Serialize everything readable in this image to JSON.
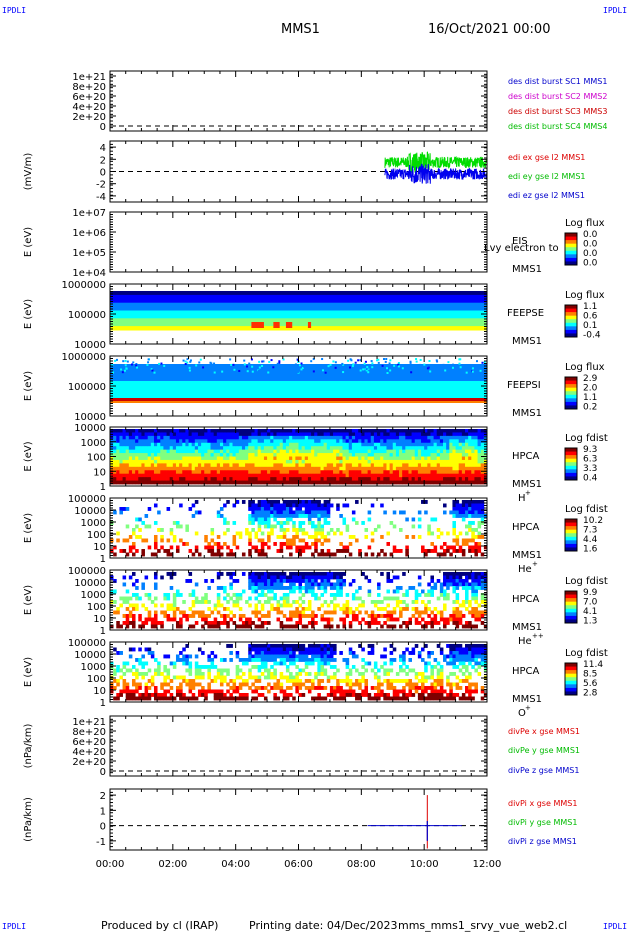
{
  "corner_labels": [
    "IPDLI",
    "IPDLI",
    "IPDLI",
    "IPDLI"
  ],
  "header": {
    "spacecraft": "MMS1",
    "date": "16/Oct/2021 00:00"
  },
  "footer": {
    "produced_by": "Produced by cl (IRAP)",
    "printing_date": "Printing date: 04/Dec/2023",
    "filename": "mms_mms1_srvy_vue_web2.cl"
  },
  "chart_data": {
    "type": "line",
    "x_tick_labels": [
      "00:00",
      "02:00",
      "04:00",
      "06:00",
      "08:00",
      "10:00",
      "12:00"
    ],
    "x_range_hours": [
      0,
      12
    ],
    "panels": [
      {
        "id": "des-dist",
        "type": "line",
        "ylabel": "",
        "ylim": [
          -1e+20,
          1.1e+21
        ],
        "y_tick_labels": [
          "1e+21",
          "8e+20",
          "6e+20",
          "4e+20",
          "2e+20",
          "0"
        ],
        "y_tick_values": [
          1e+21,
          8e+20,
          6e+20,
          4e+20,
          2e+20,
          0
        ],
        "zero_line": true,
        "legend": [
          {
            "text": "des dist burst SC1 MMS1",
            "color": "#0000cc"
          },
          {
            "text": "des dist burst SC2 MMS2",
            "color": "#cc00cc"
          },
          {
            "text": "des dist burst SC3 MMS3",
            "color": "#cc0000"
          },
          {
            "text": "des dist burst SC4 MMS4",
            "color": "#00bb00"
          }
        ]
      },
      {
        "id": "edi-e",
        "type": "line",
        "ylabel": "(mV/m)",
        "ylim": [
          -5,
          5
        ],
        "y_tick_labels": [
          "4",
          "2",
          "0",
          "-2",
          "-4"
        ],
        "y_tick_values": [
          4,
          2,
          0,
          -2,
          -4
        ],
        "zero_line": true,
        "data_window_hours": [
          8.75,
          12
        ],
        "series": [
          {
            "name": "edi ex gse l2 MMS1",
            "color": "#dd0000",
            "typical": 0.0,
            "visible": false
          },
          {
            "name": "edi ey gse l2 MMS1",
            "color": "#00dd00",
            "typical": 1.5,
            "amplitude": 1.3
          },
          {
            "name": "edi ez gse l2 MMS1",
            "color": "#0000ee",
            "typical": -0.4,
            "amplitude": 1.3
          }
        ],
        "legend": [
          {
            "text": "edi ex gse l2 MMS1",
            "color": "#dd0000"
          },
          {
            "text": "edi ey gse l2 MMS1",
            "color": "#00bb00"
          },
          {
            "text": "edi ez gse l2 MMS1",
            "color": "#0000cc"
          }
        ]
      },
      {
        "id": "eis",
        "type": "heatmap",
        "ylabel": "E (eV)",
        "log": true,
        "y_tick_labels": [
          "1e+07",
          "1e+06",
          "1e+05",
          "1e+04"
        ],
        "instrument": [
          "EIS",
          "MMS1"
        ],
        "overlay_text": "Lvy electron to",
        "colorbar": {
          "title": "Log flux",
          "labels": [
            "0.0",
            "0.0",
            "0.0",
            "0.0"
          ]
        },
        "empty": true
      },
      {
        "id": "feepse",
        "type": "heatmap",
        "ylabel": "E (eV)",
        "log": true,
        "y_tick_labels": [
          "1000000",
          "100000",
          "10000"
        ],
        "instrument": [
          "FEEPSE",
          "MMS1"
        ],
        "colorbar": {
          "title": "Log flux",
          "labels": [
            "1.1",
            "0.6",
            "0.1",
            "-0.4"
          ]
        },
        "levels_top_to_bottom": [
          0.05,
          0.15,
          0.3,
          0.5,
          0.7,
          0.85
        ],
        "hot_spots_hours": [
          [
            4.5,
            4.9
          ],
          [
            5.2,
            5.4
          ],
          [
            5.6,
            5.8
          ],
          [
            6.3,
            6.4
          ]
        ]
      },
      {
        "id": "feepsi",
        "type": "heatmap",
        "ylabel": "E (eV)",
        "log": true,
        "y_tick_labels": [
          "1000000",
          "100000",
          "10000"
        ],
        "instrument": [
          "FEEPSI",
          "MMS1"
        ],
        "colorbar": {
          "title": "Log flux",
          "labels": [
            "2.9",
            "2.0",
            "1.1",
            "0.2"
          ]
        },
        "levels_top_to_bottom": [
          0.15,
          0.2,
          0.3,
          0.35,
          0.95
        ]
      },
      {
        "id": "hpca-h",
        "type": "heatmap",
        "ylabel": "E (eV)",
        "log": true,
        "y_tick_labels": [
          "10000",
          "1000",
          "100",
          "10",
          "1"
        ],
        "instrument": [
          "HPCA",
          "MMS1",
          "H",
          "+"
        ],
        "colorbar": {
          "title": "Log fdist",
          "labels": [
            "9.3",
            "6.3",
            "3.3",
            "0.4"
          ]
        },
        "fill": 1.0,
        "levels_top_to_bottom": [
          0.05,
          0.15,
          0.35,
          0.55,
          0.72,
          0.9,
          1.0
        ],
        "shift_windows_hours": [
          [
            4.4,
            7.4
          ],
          [
            10.8,
            11.7
          ]
        ]
      },
      {
        "id": "hpca-he",
        "type": "heatmap",
        "ylabel": "E (eV)",
        "log": true,
        "y_tick_labels": [
          "100000",
          "10000",
          "1000",
          "100",
          "10",
          "1"
        ],
        "instrument": [
          "HPCA",
          "MMS1",
          "He",
          "+"
        ],
        "colorbar": {
          "title": "Log fdist",
          "labels": [
            "10.2",
            "7.3",
            "4.4",
            "1.6"
          ]
        },
        "fill": 0.25,
        "dense_windows_hours": [
          [
            4.4,
            7.0
          ],
          [
            10.9,
            11.9
          ]
        ]
      },
      {
        "id": "hpca-he2",
        "type": "heatmap",
        "ylabel": "E (eV)",
        "log": true,
        "y_tick_labels": [
          "100000",
          "10000",
          "1000",
          "100",
          "10",
          "1"
        ],
        "instrument": [
          "HPCA",
          "MMS1",
          "He",
          "++"
        ],
        "colorbar": {
          "title": "Log fdist",
          "labels": [
            "9.9",
            "7.0",
            "4.1",
            "1.3"
          ]
        },
        "fill": 0.45,
        "dense_windows_hours": [
          [
            4.4,
            7.4
          ],
          [
            10.6,
            12.0
          ]
        ]
      },
      {
        "id": "hpca-o",
        "type": "heatmap",
        "ylabel": "E (eV)",
        "log": true,
        "y_tick_labels": [
          "100000",
          "10000",
          "1000",
          "100",
          "10",
          "1"
        ],
        "instrument": [
          "HPCA",
          "MMS1",
          "O",
          "+"
        ],
        "colorbar": {
          "title": "Log fdist",
          "labels": [
            "11.4",
            "8.5",
            "5.6",
            "2.8"
          ]
        },
        "fill": 0.55,
        "dense_windows_hours": [
          [
            4.4,
            7.2
          ],
          [
            10.8,
            12.0
          ]
        ]
      },
      {
        "id": "divpe",
        "type": "line",
        "ylabel": "(nPa/km)",
        "ylim": [
          -1e+20,
          1.1e+21
        ],
        "y_tick_labels": [
          "1e+21",
          "8e+20",
          "6e+20",
          "4e+20",
          "2e+20",
          "0"
        ],
        "y_tick_values": [
          1e+21,
          8e+20,
          6e+20,
          4e+20,
          2e+20,
          0
        ],
        "zero_line": true,
        "legend": [
          {
            "text": "divPe x gse MMS1",
            "color": "#dd0000"
          },
          {
            "text": "divPe y gse MMS1",
            "color": "#00bb00"
          },
          {
            "text": "divPe z gse MMS1",
            "color": "#0000cc"
          }
        ]
      },
      {
        "id": "divpi",
        "type": "line",
        "ylabel": "(nPa/km)",
        "ylim": [
          -1.6,
          2.4
        ],
        "y_tick_labels": [
          "2",
          "1",
          "0",
          "-1"
        ],
        "y_tick_values": [
          2,
          1,
          0,
          -1
        ],
        "zero_line": true,
        "spike_hours": 10.1,
        "spike_x_ylim": [
          -1.5,
          2.0
        ],
        "spike_z_ylim": [
          -1.0,
          0.3
        ],
        "z_segment_hours": [
          8.2,
          11.2
        ],
        "legend": [
          {
            "text": "divPi x gse MMS1",
            "color": "#dd0000"
          },
          {
            "text": "divPi y gse MMS1",
            "color": "#00bb00"
          },
          {
            "text": "divPi z gse MMS1",
            "color": "#0000cc"
          }
        ]
      }
    ]
  }
}
